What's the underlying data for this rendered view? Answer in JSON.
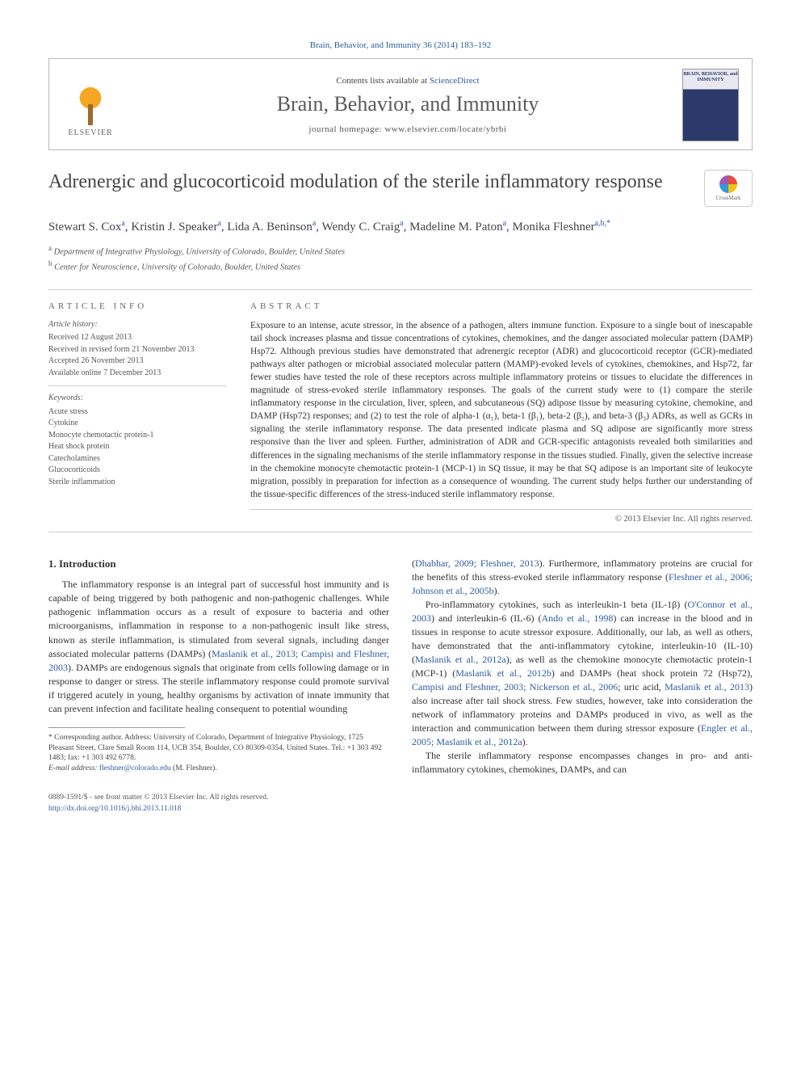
{
  "citation": "Brain, Behavior, and Immunity 36 (2014) 183–192",
  "header": {
    "contents_prefix": "Contents lists available at ",
    "contents_link": "ScienceDirect",
    "journal": "Brain, Behavior, and Immunity",
    "homepage_prefix": "journal homepage: ",
    "homepage": "www.elsevier.com/locate/ybrbi",
    "publisher_label": "ELSEVIER",
    "cover_title": "BRAIN, BEHAVIOR, and IMMUNITY"
  },
  "title": "Adrenergic and glucocorticoid modulation of the sterile inflammatory response",
  "crossmark_label": "CrossMark",
  "authors_html": "Stewart S. Cox<sup>a</sup>, Kristin J. Speaker<sup>a</sup>, Lida A. Beninson<sup>a</sup>, Wendy C. Craig<sup>a</sup>, Madeline M. Paton<sup>a</sup>, Monika Fleshner<sup>a,b,*</sup>",
  "affiliations": [
    {
      "sup": "a",
      "text": "Department of Integrative Physiology, University of Colorado, Boulder, United States"
    },
    {
      "sup": "b",
      "text": "Center for Neuroscience, University of Colorado, Boulder, United States"
    }
  ],
  "info": {
    "heading": "ARTICLE INFO",
    "history_label": "Article history:",
    "history": [
      "Received 12 August 2013",
      "Received in revised form 21 November 2013",
      "Accepted 26 November 2013",
      "Available online 7 December 2013"
    ],
    "keywords_label": "Keywords:",
    "keywords": [
      "Acute stress",
      "Cytokine",
      "Monocyte chemotactic protein-1",
      "Heat shock protein",
      "Catecholamines",
      "Glucocorticoids",
      "Sterile inflammation"
    ]
  },
  "abstract": {
    "heading": "ABSTRACT",
    "text": "Exposure to an intense, acute stressor, in the absence of a pathogen, alters immune function. Exposure to a single bout of inescapable tail shock increases plasma and tissue concentrations of cytokines, chemokines, and the danger associated molecular pattern (DAMP) Hsp72. Although previous studies have demonstrated that adrenergic receptor (ADR) and glucocorticoid receptor (GCR)-mediated pathways alter pathogen or microbial associated molecular pattern (MAMP)-evoked levels of cytokines, chemokines, and Hsp72, far fewer studies have tested the role of these receptors across multiple inflammatory proteins or tissues to elucidate the differences in magnitude of stress-evoked sterile inflammatory responses. The goals of the current study were to (1) compare the sterile inflammatory response in the circulation, liver, spleen, and subcutaneous (SQ) adipose tissue by measuring cytokine, chemokine, and DAMP (Hsp72) responses; and (2) to test the role of alpha-1 (α₁), beta-1 (β₁), beta-2 (β₂), and beta-3 (β₃) ADRs, as well as GCRs in signaling the sterile inflammatory response. The data presented indicate plasma and SQ adipose are significantly more stress responsive than the liver and spleen. Further, administration of ADR and GCR-specific antagonists revealed both similarities and differences in the signaling mechanisms of the sterile inflammatory response in the tissues studied. Finally, given the selective increase in the chemokine monocyte chemotactic protein-1 (MCP-1) in SQ tissue, it may be that SQ adipose is an important site of leukocyte migration, possibly in preparation for infection as a consequence of wounding. The current study helps further our understanding of the tissue-specific differences of the stress-induced sterile inflammatory response.",
    "copyright": "© 2013 Elsevier Inc. All rights reserved."
  },
  "sections": {
    "intro_heading": "1. Introduction",
    "col1_p1": "The inflammatory response is an integral part of successful host immunity and is capable of being triggered by both pathogenic and non-pathogenic challenges. While pathogenic inflammation occurs as a result of exposure to bacteria and other microorganisms, inflammation in response to a non-pathogenic insult like stress, known as sterile inflammation, is stimulated from several signals, including danger associated molecular patterns (DAMPs) (",
    "col1_r1": "Maslanik et al., 2013; Campisi and Fleshner, 2003",
    "col1_p1b": "). DAMPs are endogenous signals that originate from cells following damage or in response to danger or stress. The sterile inflammatory response could promote survival if triggered acutely in young, healthy organisms by activation of innate immunity that can prevent infection and facilitate healing consequent to potential wounding",
    "col2_p1": "(",
    "col2_r1": "Dhabhar, 2009; Fleshner, 2013",
    "col2_p1b": "). Furthermore, inflammatory proteins are crucial for the benefits of this stress-evoked sterile inflammatory response (",
    "col2_r2": "Fleshner et al., 2006; Johnson et al., 2005b",
    "col2_p1c": ").",
    "col2_p2a": "Pro-inflammatory cytokines, such as interleukin-1 beta (IL-1β) (",
    "col2_r3": "O'Connor et al., 2003",
    "col2_p2b": ") and interleukin-6 (IL-6) (",
    "col2_r4": "Ando et al., 1998",
    "col2_p2c": ") can increase in the blood and in tissues in response to acute stressor exposure. Additionally, our lab, as well as others, have demonstrated that the anti-inflammatory cytokine, interleukin-10 (IL-10) (",
    "col2_r5": "Maslanik et al., 2012a",
    "col2_p2d": "), as well as the chemokine monocyte chemotactic protein-1 (MCP-1) (",
    "col2_r6": "Maslanik et al., 2012b",
    "col2_p2e": ") and DAMPs (heat shock protein 72 (Hsp72), ",
    "col2_r7": "Campisi and Fleshner, 2003; Nickerson et al., 2006",
    "col2_p2f": "; uric acid, ",
    "col2_r8": "Maslanik et al., 2013",
    "col2_p2g": ") also increase after tail shock stress. Few studies, however, take into consideration the network of inflammatory proteins and DAMPs produced in vivo, as well as the interaction and communication between them during stressor exposure (",
    "col2_r9": "Engler et al., 2005; Maslanik et al., 2012a",
    "col2_p2h": ").",
    "col2_p3": "The sterile inflammatory response encompasses changes in pro- and anti-inflammatory cytokines, chemokines, DAMPs, and can"
  },
  "footnote": {
    "corr_label": "* Corresponding author. Address: University of Colorado, Department of Integrative Physiology, 1725 Pleasant Street, Clare Small Room 114, UCB 354, Boulder, CO 80309-0354, United States. Tel.: +1 303 492 1483; fax: +1 303 492 6778.",
    "email_label": "E-mail address: ",
    "email": "fleshner@colorado.edu",
    "email_suffix": " (M. Fleshner)."
  },
  "footer": {
    "line1": "0889-1591/$ - see front matter © 2013 Elsevier Inc. All rights reserved.",
    "doi": "http://dx.doi.org/10.1016/j.bbi.2013.11.018"
  }
}
